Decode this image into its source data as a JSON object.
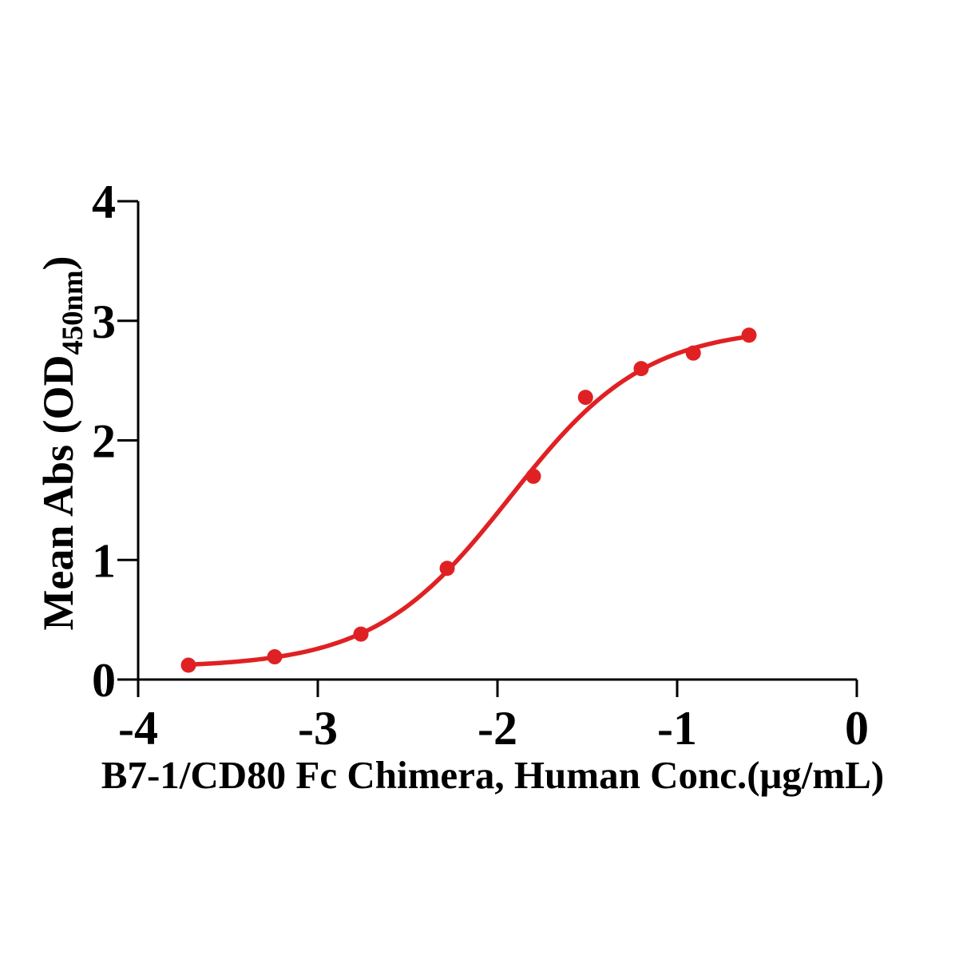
{
  "chart_data": {
    "type": "scatter",
    "subtype": "dose-response-4pl-fit",
    "title": "",
    "xlabel": "B7-1/CD80 Fc Chimera, Human Conc.(μg/mL)",
    "ylabel": {
      "main": "Mean Abs (OD",
      "sub": "450nm",
      "close": ")"
    },
    "x_log10_conc": [
      -3.72,
      -3.24,
      -2.76,
      -2.28,
      -1.8,
      -1.51,
      -1.2,
      -0.91,
      -0.6
    ],
    "y_od450": [
      0.12,
      0.19,
      0.38,
      0.93,
      1.7,
      2.36,
      2.6,
      2.73,
      2.88
    ],
    "xlim": [
      -4,
      0
    ],
    "ylim": [
      0,
      4
    ],
    "xticks": [
      -4,
      -3,
      -2,
      -1,
      0
    ],
    "yticks": [
      0,
      1,
      2,
      3,
      4
    ],
    "grid": false,
    "legend": null,
    "curve_fit_4pl": {
      "bottom": 0.1,
      "top": 2.95,
      "log_ec50": -1.93,
      "hill": 1.15,
      "x_start": -3.72,
      "x_end": -0.6
    },
    "marker_color": "#e02124",
    "line_color": "#e02124",
    "axis_color": "#000000"
  }
}
